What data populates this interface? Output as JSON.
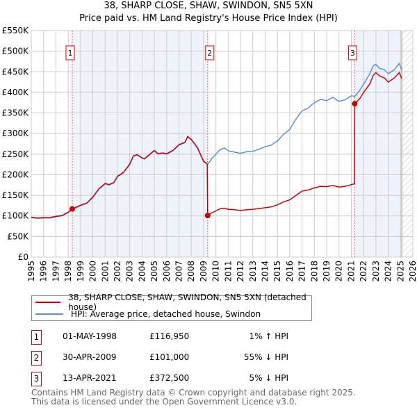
{
  "chart_data": {
    "type": "line",
    "title": "38, SHARP CLOSE, SHAW, SWINDON, SN5 5XN",
    "subtitle": "Price paid vs. HM Land Registry's House Price Index (HPI)",
    "xlim": [
      1995,
      2026
    ],
    "ylim": [
      0,
      550000
    ],
    "x_ticks": [
      "1995",
      "1996",
      "1997",
      "1998",
      "1999",
      "2000",
      "2001",
      "2002",
      "2003",
      "2004",
      "2005",
      "2006",
      "2007",
      "2008",
      "2009",
      "2010",
      "2011",
      "2012",
      "2013",
      "2014",
      "2015",
      "2016",
      "2017",
      "2018",
      "2019",
      "2020",
      "2021",
      "2022",
      "2023",
      "2024",
      "2025",
      "2026"
    ],
    "y_ticks": [
      {
        "v": 0,
        "label": "£0"
      },
      {
        "v": 50000,
        "label": "£50K"
      },
      {
        "v": 100000,
        "label": "£100K"
      },
      {
        "v": 150000,
        "label": "£150K"
      },
      {
        "v": 200000,
        "label": "£200K"
      },
      {
        "v": 250000,
        "label": "£250K"
      },
      {
        "v": 300000,
        "label": "£300K"
      },
      {
        "v": 350000,
        "label": "£350K"
      },
      {
        "v": 400000,
        "label": "£400K"
      },
      {
        "v": 450000,
        "label": "£450K"
      },
      {
        "v": 500000,
        "label": "£500K"
      },
      {
        "v": 550000,
        "label": "£550K"
      }
    ],
    "grid": true,
    "data_end": 2025.1,
    "series": [
      {
        "name": "38, SHARP CLOSE, SHAW, SWINDON, SN5 5XN (detached house)",
        "color": "#cc0000",
        "x": [
          1995,
          1995.5,
          1996,
          1996.5,
          1997,
          1997.5,
          1998,
          1998.33,
          1999,
          1999.5,
          2000,
          2000.5,
          2001,
          2001.3,
          2001.7,
          2002,
          2002.5,
          2003,
          2003.3,
          2003.6,
          2004,
          2004.2,
          2004.6,
          2005,
          2005.3,
          2005.7,
          2006,
          2006.5,
          2007,
          2007.5,
          2007.7,
          2008,
          2008.5,
          2009,
          2009.3,
          2009.33,
          2009.7,
          2010,
          2010.3,
          2010.7,
          2011,
          2011.5,
          2012,
          2012.5,
          2013,
          2013.5,
          2014,
          2014.5,
          2015,
          2015.5,
          2016,
          2016.5,
          2017,
          2017.5,
          2018,
          2018.5,
          2019,
          2019.5,
          2020,
          2020.5,
          2021,
          2021.25,
          2021.28,
          2021.7,
          2022,
          2022.5,
          2022.8,
          2023,
          2023.3,
          2023.7,
          2024,
          2024.5,
          2024.9,
          2025.1
        ],
        "y": [
          97,
          95,
          96,
          96,
          99,
          101,
          109,
          116.95,
          126,
          131,
          146,
          166,
          179,
          176,
          181,
          196,
          206,
          226,
          246,
          249,
          241,
          239,
          249,
          259,
          251,
          253,
          251,
          259,
          273,
          279,
          293,
          286,
          266,
          233,
          226,
          101,
          108,
          112,
          117,
          119,
          116,
          115,
          113,
          115,
          116,
          118,
          120,
          122,
          127,
          134,
          139,
          150,
          160,
          163,
          168,
          172,
          171,
          174,
          170,
          172,
          176,
          178,
          372.5,
          385,
          400,
          420,
          442,
          448,
          440,
          435,
          425,
          435,
          448,
          433
        ]
      },
      {
        "name": "HPI: Average price, detached house, Swindon",
        "color": "#5b8fd4",
        "x": [
          1995,
          1995.5,
          1996,
          1996.5,
          1997,
          1997.5,
          1998,
          1998.33,
          1999,
          1999.5,
          2000,
          2000.5,
          2001,
          2001.3,
          2001.7,
          2002,
          2002.5,
          2003,
          2003.3,
          2003.6,
          2004,
          2004.2,
          2004.6,
          2005,
          2005.3,
          2005.7,
          2006,
          2006.5,
          2007,
          2007.5,
          2007.7,
          2008,
          2008.5,
          2009,
          2009.33,
          2009.7,
          2010,
          2010.3,
          2010.7,
          2011,
          2011.5,
          2012,
          2012.5,
          2013,
          2013.5,
          2014,
          2014.5,
          2015,
          2015.5,
          2016,
          2016.5,
          2017,
          2017.5,
          2018,
          2018.5,
          2019,
          2019.5,
          2020,
          2020.5,
          2021,
          2021.28,
          2021.7,
          2022,
          2022.5,
          2022.8,
          2023,
          2023.3,
          2023.7,
          2024,
          2024.5,
          2024.9,
          2025.1
        ],
        "y": [
          96,
          94,
          95,
          95,
          98,
          100,
          108,
          116,
          125,
          130,
          145,
          165,
          178,
          175,
          180,
          195,
          205,
          225,
          245,
          248,
          240,
          238,
          248,
          258,
          250,
          252,
          250,
          258,
          272,
          278,
          292,
          285,
          265,
          232,
          225,
          240,
          250,
          260,
          265,
          258,
          255,
          252,
          256,
          257,
          262,
          268,
          272,
          282,
          298,
          310,
          335,
          355,
          362,
          375,
          383,
          380,
          388,
          378,
          382,
          392,
          390,
          405,
          420,
          445,
          465,
          468,
          458,
          455,
          445,
          455,
          470,
          455
        ]
      }
    ],
    "sales": [
      {
        "n": "1",
        "x": 1998.33,
        "y": 116950,
        "date": "01-MAY-1998",
        "price": "£116,950",
        "hpi": "1% ↑ HPI"
      },
      {
        "n": "2",
        "x": 2009.33,
        "y": 101000,
        "date": "30-APR-2009",
        "price": "£101,000",
        "hpi": "55% ↓ HPI"
      },
      {
        "n": "3",
        "x": 2021.28,
        "y": 372500,
        "date": "13-APR-2021",
        "price": "£372,500",
        "hpi": "5% ↓ HPI"
      }
    ]
  },
  "footer": [
    "Contains HM Land Registry data © Crown copyright and database right 2025.",
    "This data is licensed under the Open Government Licence v3.0."
  ]
}
